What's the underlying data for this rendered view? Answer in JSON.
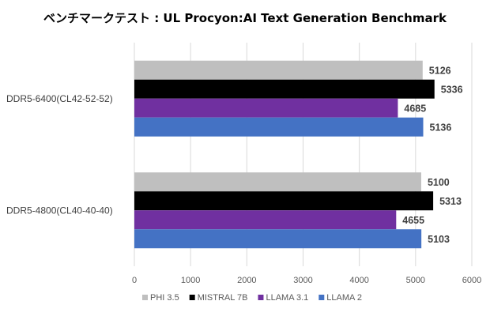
{
  "chart_data": {
    "type": "bar",
    "orientation": "horizontal",
    "title": "ベンチマークテスト : UL Procyon:AI Text Generation Benchmark",
    "categories": [
      "DDR5-6400(CL42-52-52)",
      "DDR5-4800(CL40-40-40)"
    ],
    "series": [
      {
        "name": "PHI 3.5",
        "color": "#BFBFBF",
        "values": [
          5126,
          5100
        ]
      },
      {
        "name": "MISTRAL 7B",
        "color": "#000000",
        "values": [
          5336,
          5313
        ]
      },
      {
        "name": "LLAMA 3.1",
        "color": "#7030A0",
        "values": [
          4685,
          4655
        ]
      },
      {
        "name": "LLAMA 2",
        "color": "#4472C4",
        "values": [
          5136,
          5103
        ]
      }
    ],
    "xlim": [
      0,
      6000
    ],
    "xticks": [
      "0",
      "1000",
      "2000",
      "3000",
      "4000",
      "5000",
      "6000"
    ],
    "grid": true,
    "legend": "bottom",
    "xlabel": "",
    "ylabel": ""
  }
}
